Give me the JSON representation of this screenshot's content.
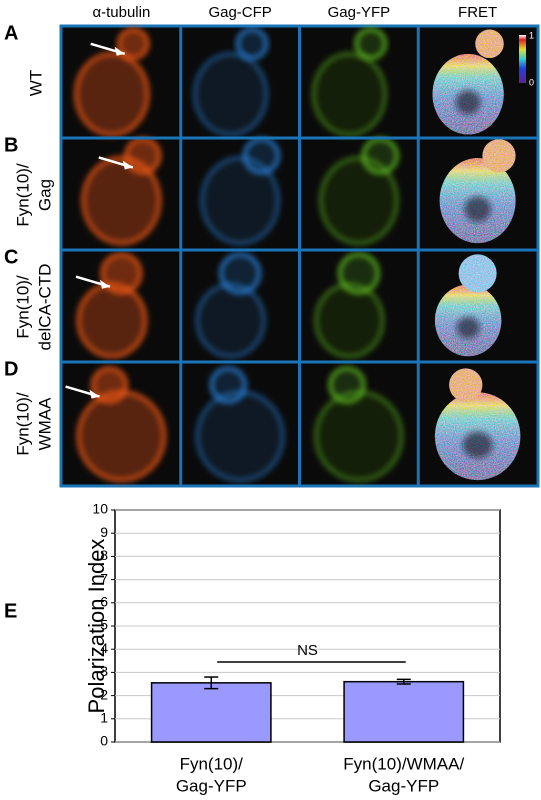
{
  "panels": {
    "column_headers": [
      "α-tubulin",
      "Gag-CFP",
      "Gag-YFP",
      "FRET"
    ],
    "rows": [
      {
        "letter": "A",
        "label": [
          "WT"
        ]
      },
      {
        "letter": "B",
        "label": [
          "Fyn(10)/",
          "Gag"
        ]
      },
      {
        "letter": "C",
        "label": [
          "Fyn(10)/",
          "delCA-CTD"
        ]
      },
      {
        "letter": "D",
        "label": [
          "Fyn(10)/",
          "WMAA"
        ]
      }
    ],
    "colorbar": {
      "max": 1,
      "min": 0
    }
  },
  "chart_data": {
    "type": "bar",
    "panel_letter": "E",
    "ylabel": "Polarization Index",
    "categories": [
      [
        "Fyn(10)/",
        "Gag-YFP"
      ],
      [
        "Fyn(10)/WMAA/",
        "Gag-YFP"
      ]
    ],
    "values": [
      2.55,
      2.6
    ],
    "errors": [
      0.25,
      0.1
    ],
    "color": "#9999ff",
    "ylim": [
      0,
      10
    ],
    "yticks": [
      0,
      1,
      2,
      3,
      4,
      5,
      6,
      7,
      8,
      9,
      10
    ],
    "grid": true,
    "annotation": "NS"
  }
}
